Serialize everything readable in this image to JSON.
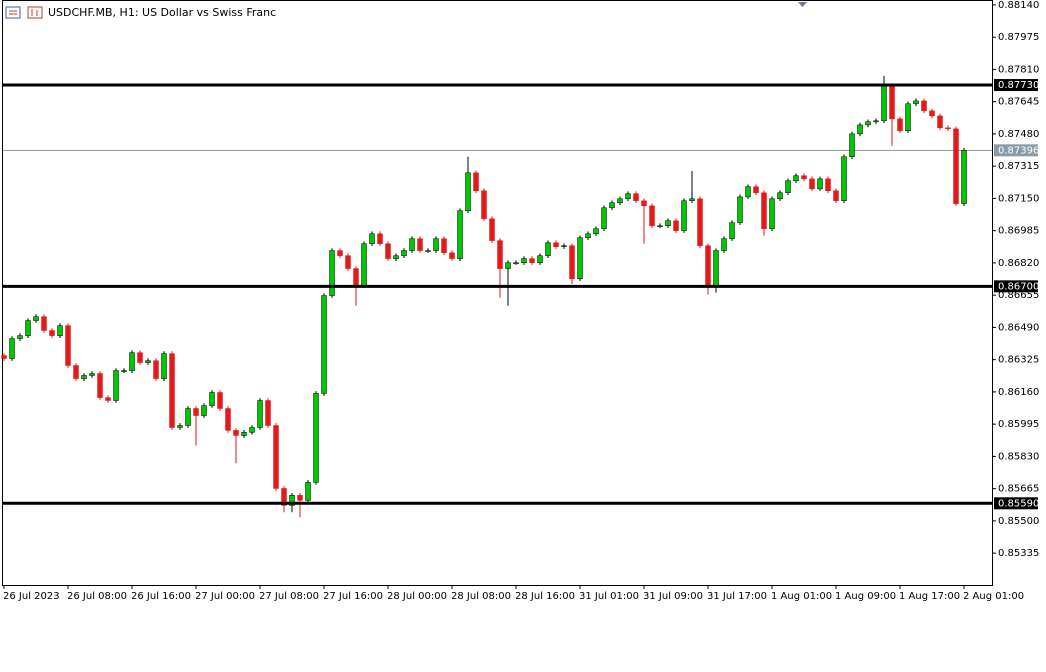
{
  "chart_data": {
    "type": "candlestick",
    "title": "USDCHF.MB, H1:  US Dollar vs Swiss Franc",
    "categories": [
      "26 Jul 2023",
      null,
      null,
      null,
      null,
      null,
      null,
      null,
      "26 Jul 08:00",
      null,
      null,
      null,
      null,
      null,
      null,
      null,
      "26 Jul 16:00",
      null,
      null,
      null,
      null,
      null,
      null,
      null,
      "27 Jul 00:00",
      null,
      null,
      null,
      null,
      null,
      null,
      null,
      "27 Jul 08:00",
      null,
      null,
      null,
      null,
      null,
      null,
      null,
      "27 Jul 16:00",
      null,
      null,
      null,
      null,
      null,
      null,
      null,
      "28 Jul 00:00",
      null,
      null,
      null,
      null,
      null,
      null,
      null,
      "28 Jul 08:00",
      null,
      null,
      null,
      null,
      null,
      null,
      null,
      "28 Jul 16:00",
      null,
      null,
      null,
      null,
      null,
      null,
      null,
      "31 Jul 01:00",
      null,
      null,
      null,
      null,
      null,
      null,
      null,
      "31 Jul 09:00",
      null,
      null,
      null,
      null,
      null,
      null,
      null,
      "31 Jul 17:00",
      null,
      null,
      null,
      null,
      null,
      null,
      null,
      "1 Aug 01:00",
      null,
      null,
      null,
      null,
      null,
      null,
      null,
      "1 Aug 09:00",
      null,
      null,
      null,
      null,
      null,
      null,
      null,
      "1 Aug 17:00",
      null,
      null,
      null,
      null,
      null,
      null,
      null,
      "2 Aug 01:00"
    ],
    "open": [
      0.86346,
      0.86331,
      0.86433,
      0.86448,
      0.86525,
      0.86545,
      0.86474,
      0.86448,
      0.86499,
      0.86295,
      0.86228,
      0.86244,
      0.86254,
      0.86131,
      0.86116,
      0.86269,
      0.86269,
      0.86361,
      0.8631,
      0.8632,
      0.86228,
      0.86356,
      0.85978,
      0.85988,
      0.86075,
      0.86039,
      0.8609,
      0.86157,
      0.86075,
      0.85963,
      0.85937,
      0.85953,
      0.85978,
      0.86116,
      0.85988,
      0.85666,
      0.85579,
      0.85631,
      0.85605,
      0.85697,
      0.86152,
      0.86653,
      0.86883,
      0.86857,
      0.86791,
      0.86704,
      0.86918,
      0.86969,
      0.86918,
      0.86842,
      0.86857,
      0.86883,
      0.86944,
      0.86883,
      0.86883,
      0.86944,
      0.86872,
      0.86842,
      0.87087,
      0.87281,
      0.87189,
      0.87046,
      0.86934,
      0.86791,
      0.86821,
      0.86821,
      0.86842,
      0.86821,
      0.86857,
      0.86923,
      0.86903,
      0.86908,
      0.86739,
      0.86949,
      0.86969,
      0.86995,
      0.87102,
      0.87128,
      0.87148,
      0.87174,
      0.87138,
      0.87112,
      0.8701,
      0.8701,
      0.87036,
      0.86985,
      0.87138,
      0.87148,
      0.86908,
      0.86704,
      0.86883,
      0.86944,
      0.87026,
      0.87158,
      0.8721,
      0.87179,
      0.86995,
      0.87148,
      0.87179,
      0.8724,
      0.87266,
      0.8725,
      0.87199,
      0.8725,
      0.87189,
      0.87138,
      0.87363,
      0.8748,
      0.87526,
      0.87542,
      0.87547,
      0.87726,
      0.87557,
      0.87496,
      0.87634,
      0.87649,
      0.87598,
      0.87572,
      0.87511,
      0.87506,
      0.87123
    ],
    "high": [
      0.86358,
      0.86445,
      0.8646,
      0.86537,
      0.86557,
      0.86557,
      0.86486,
      0.86511,
      0.86511,
      0.86307,
      0.86256,
      0.86266,
      0.86266,
      0.86143,
      0.86281,
      0.86281,
      0.86373,
      0.86373,
      0.86332,
      0.86332,
      0.86368,
      0.86368,
      0.86,
      0.86087,
      0.86087,
      0.86102,
      0.86169,
      0.86169,
      0.86087,
      0.85975,
      0.85965,
      0.8599,
      0.86128,
      0.86128,
      0.86,
      0.85678,
      0.85643,
      0.85643,
      0.85709,
      0.86164,
      0.86665,
      0.86895,
      0.86895,
      0.86869,
      0.86803,
      0.8693,
      0.86981,
      0.86981,
      0.8693,
      0.86869,
      0.86895,
      0.86956,
      0.86956,
      0.86895,
      0.86956,
      0.86956,
      0.86884,
      0.87099,
      0.87363,
      0.87293,
      0.87201,
      0.87058,
      0.86946,
      0.86833,
      0.86833,
      0.86854,
      0.86854,
      0.86869,
      0.86935,
      0.86935,
      0.8692,
      0.8692,
      0.86961,
      0.86981,
      0.87007,
      0.87114,
      0.8714,
      0.8716,
      0.87186,
      0.87186,
      0.8715,
      0.87124,
      0.87022,
      0.87048,
      0.87048,
      0.8715,
      0.87291,
      0.8716,
      0.8692,
      0.86895,
      0.86956,
      0.87038,
      0.8717,
      0.87222,
      0.87222,
      0.87191,
      0.8716,
      0.87191,
      0.87252,
      0.87278,
      0.87278,
      0.87262,
      0.87262,
      0.87262,
      0.87201,
      0.87375,
      0.87492,
      0.87538,
      0.87554,
      0.87559,
      0.87777,
      0.87738,
      0.87569,
      0.87646,
      0.87661,
      0.87661,
      0.8761,
      0.87584,
      0.87523,
      0.87518,
      0.87408
    ],
    "low": [
      0.86319,
      0.86319,
      0.86421,
      0.86436,
      0.86513,
      0.86462,
      0.86436,
      0.86436,
      0.86283,
      0.86216,
      0.86216,
      0.86232,
      0.86119,
      0.86104,
      0.86104,
      0.86257,
      0.86257,
      0.86298,
      0.86298,
      0.86216,
      0.86216,
      0.85966,
      0.85966,
      0.85976,
      0.85886,
      0.86027,
      0.86078,
      0.86063,
      0.85951,
      0.85794,
      0.85925,
      0.85941,
      0.85966,
      0.85976,
      0.85654,
      0.85544,
      0.85544,
      0.85518,
      0.85593,
      0.85685,
      0.8614,
      0.86641,
      0.86845,
      0.86779,
      0.86601,
      0.86692,
      0.86906,
      0.86906,
      0.8683,
      0.8683,
      0.86845,
      0.86871,
      0.86871,
      0.86871,
      0.86871,
      0.8686,
      0.8683,
      0.8683,
      0.87075,
      0.87177,
      0.87034,
      0.86922,
      0.86642,
      0.86601,
      0.86809,
      0.86809,
      0.86809,
      0.86809,
      0.86845,
      0.86891,
      0.86891,
      0.86712,
      0.86727,
      0.86937,
      0.86957,
      0.86983,
      0.8709,
      0.87116,
      0.87136,
      0.87126,
      0.86918,
      0.86998,
      0.86998,
      0.86998,
      0.86973,
      0.86973,
      0.87126,
      0.86896,
      0.86658,
      0.86668,
      0.86871,
      0.86932,
      0.87014,
      0.87146,
      0.87167,
      0.86959,
      0.86983,
      0.87136,
      0.87167,
      0.87228,
      0.87238,
      0.87187,
      0.87187,
      0.87177,
      0.87126,
      0.87126,
      0.87351,
      0.87468,
      0.87514,
      0.8753,
      0.87535,
      0.87419,
      0.87484,
      0.87484,
      0.87622,
      0.87586,
      0.8756,
      0.87499,
      0.87494,
      0.87112,
      0.87111
    ],
    "close": [
      0.86331,
      0.86433,
      0.86448,
      0.86525,
      0.86545,
      0.86474,
      0.86448,
      0.86499,
      0.86295,
      0.86228,
      0.86244,
      0.86254,
      0.86131,
      0.86116,
      0.86269,
      0.86269,
      0.86361,
      0.8631,
      0.8632,
      0.86228,
      0.86356,
      0.85978,
      0.85988,
      0.86075,
      0.86039,
      0.8609,
      0.86157,
      0.86075,
      0.85963,
      0.85937,
      0.85953,
      0.85978,
      0.86116,
      0.85988,
      0.85666,
      0.85579,
      0.85631,
      0.85605,
      0.85697,
      0.86152,
      0.86653,
      0.86883,
      0.86857,
      0.86791,
      0.86704,
      0.86918,
      0.86969,
      0.86918,
      0.86842,
      0.86857,
      0.86883,
      0.86944,
      0.86883,
      0.86883,
      0.86944,
      0.86872,
      0.86842,
      0.87087,
      0.87281,
      0.87189,
      0.87046,
      0.86934,
      0.86791,
      0.86821,
      0.86821,
      0.86842,
      0.86821,
      0.86857,
      0.86923,
      0.86903,
      0.86908,
      0.86739,
      0.86949,
      0.86969,
      0.86995,
      0.87102,
      0.87128,
      0.87148,
      0.87174,
      0.87138,
      0.87112,
      0.8701,
      0.8701,
      0.87036,
      0.86985,
      0.87138,
      0.87148,
      0.86908,
      0.86704,
      0.86883,
      0.86944,
      0.87026,
      0.87158,
      0.8721,
      0.87179,
      0.86995,
      0.87148,
      0.87179,
      0.8724,
      0.87266,
      0.8725,
      0.87199,
      0.8725,
      0.87189,
      0.87138,
      0.87363,
      0.8748,
      0.87526,
      0.87542,
      0.87547,
      0.87726,
      0.87557,
      0.87496,
      0.87634,
      0.87649,
      0.87598,
      0.87572,
      0.87511,
      0.87506,
      0.87123,
      0.87396
    ],
    "up_color": "#00c800",
    "down_color": "#e31a1c",
    "ylim": [
      0.85172,
      0.8816
    ],
    "yticks": [
      {
        "value": 0.8814,
        "label": "0.88140"
      },
      {
        "value": 0.87975,
        "label": "0.87975"
      },
      {
        "value": 0.8781,
        "label": "0.87810"
      },
      {
        "value": 0.87645,
        "label": "0.87645"
      },
      {
        "value": 0.8748,
        "label": "0.87480"
      },
      {
        "value": 0.87315,
        "label": "0.87315"
      },
      {
        "value": 0.8715,
        "label": "0.87150"
      },
      {
        "value": 0.86985,
        "label": "0.86985"
      },
      {
        "value": 0.8682,
        "label": "0.86820"
      },
      {
        "value": 0.86655,
        "label": "0.86655"
      },
      {
        "value": 0.8649,
        "label": "0.86490"
      },
      {
        "value": 0.86325,
        "label": "0.86325"
      },
      {
        "value": 0.8616,
        "label": "0.86160"
      },
      {
        "value": 0.85995,
        "label": "0.85995"
      },
      {
        "value": 0.8583,
        "label": "0.85830"
      },
      {
        "value": 0.85665,
        "label": "0.85665"
      },
      {
        "value": 0.855,
        "label": "0.85500"
      },
      {
        "value": 0.85335,
        "label": "0.85335"
      }
    ],
    "levels": [
      {
        "value": 0.8773,
        "label": "0.87730"
      },
      {
        "value": 0.867,
        "label": "0.86700"
      },
      {
        "value": 0.8559,
        "label": "0.85590"
      }
    ],
    "current_price": {
      "value": 0.87396,
      "label": "0.87396"
    },
    "current_price_color": "#8a9aa6",
    "grid": false
  }
}
